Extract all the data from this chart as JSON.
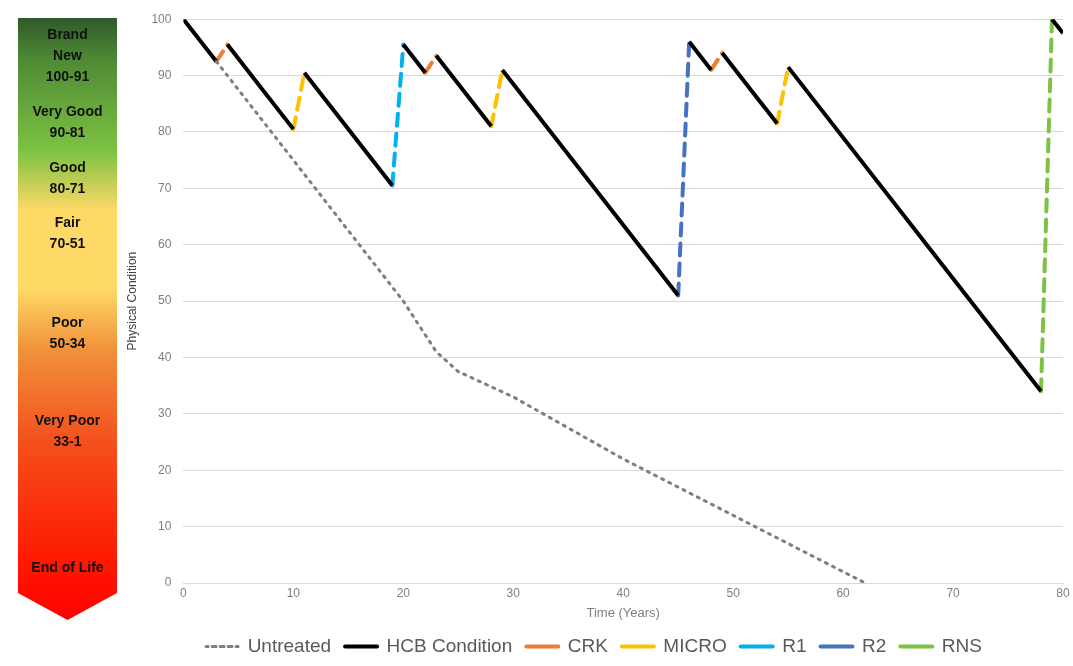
{
  "chart_data": {
    "type": "line",
    "xlabel": "Time (Years)",
    "ylabel": "Physical Condition",
    "xlim": [
      0,
      80
    ],
    "xticks": [
      0,
      10,
      20,
      30,
      40,
      50,
      60,
      70,
      80
    ],
    "ylim": [
      0,
      100
    ],
    "yticks": [
      0,
      10,
      20,
      30,
      40,
      50,
      60,
      70,
      80,
      90,
      100
    ],
    "grid": "y",
    "legend": "bottom",
    "marker": "none",
    "annotations": [
      "Brand\nNew\n100-91",
      "Very Good\n90-81",
      "Good\n80-71",
      "Fair\n70-51",
      "Poor\n50-34",
      "Very Poor\n33-1",
      "End of Life"
    ],
    "series": [
      {
        "name": "Untreated",
        "color": "#7f7f7f",
        "line_style": "dotted",
        "x": [
          3,
          10,
          20,
          23,
          25,
          30,
          40,
          50,
          62
        ],
        "values": [
          92.5,
          75,
          50,
          41,
          37.5,
          33,
          22,
          12,
          0
        ]
      },
      {
        "name": "HCB Condition",
        "color": "#000000",
        "line_style": "solid",
        "x": [
          0,
          3,
          3.5,
          4,
          10,
          10.5,
          11,
          19,
          19.5,
          20,
          22,
          22.5,
          23,
          28,
          28.5,
          29,
          45,
          45.5,
          46,
          48,
          48.5,
          49,
          54,
          54.5,
          55,
          78,
          78.5,
          79,
          80
        ],
        "values": [
          100,
          92.5,
          null,
          95.5,
          80.5,
          null,
          90.5,
          70.5,
          null,
          95.5,
          90.5,
          null,
          93.5,
          81,
          null,
          91,
          51,
          null,
          96,
          91,
          null,
          94,
          81.5,
          null,
          91.5,
          34,
          null,
          100,
          97.5
        ]
      },
      {
        "name": "CRK",
        "color": "#ed7d31",
        "line_style": "dashed",
        "x": [
          3,
          4,
          13,
          22,
          23,
          35,
          48,
          49
        ],
        "values": [
          92.5,
          95.5,
          null,
          90.5,
          93.5,
          null,
          91,
          94
        ]
      },
      {
        "name": "MICRO",
        "color": "#ffc000",
        "line_style": "dashed",
        "x": [
          10,
          11,
          20,
          28,
          29,
          41,
          54,
          55
        ],
        "values": [
          80.5,
          90.5,
          null,
          81,
          91,
          null,
          81.5,
          91.5
        ]
      },
      {
        "name": "R1",
        "color": "#00b0f0",
        "line_style": "dashed",
        "x": [
          19,
          20
        ],
        "values": [
          70.5,
          95.5
        ]
      },
      {
        "name": "R2",
        "color": "#4472c4",
        "line_style": "dashed",
        "x": [
          45,
          46
        ],
        "values": [
          51,
          96
        ]
      },
      {
        "name": "RNS",
        "color": "#7dc242",
        "line_style": "dashed",
        "x": [
          78,
          79
        ],
        "values": [
          34,
          100
        ]
      }
    ]
  }
}
